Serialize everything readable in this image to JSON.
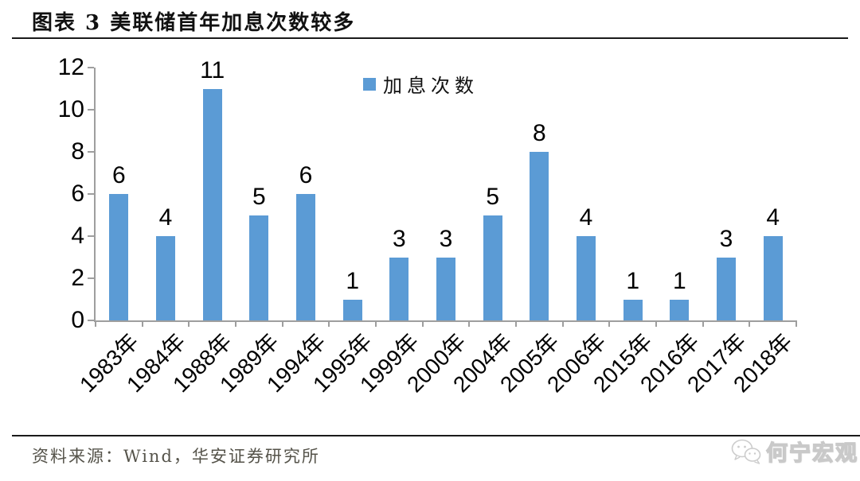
{
  "header": {
    "title": "图表 3 美联储首年加息次数较多"
  },
  "chart_data": {
    "type": "bar",
    "title": "图表 3 美联储首年加息次数较多",
    "legend": "加息次数",
    "legend_position": "top",
    "categories": [
      "1983年",
      "1984年",
      "1988年",
      "1989年",
      "1994年",
      "1995年",
      "1999年",
      "2000年",
      "2004年",
      "2005年",
      "2006年",
      "2015年",
      "2016年",
      "2017年",
      "2018年"
    ],
    "values": [
      6,
      4,
      11,
      5,
      6,
      1,
      3,
      3,
      5,
      8,
      4,
      1,
      1,
      3,
      4
    ],
    "xlabel": "",
    "ylabel": "",
    "ylim": [
      0,
      12
    ],
    "ytick_step": 2,
    "grid": false,
    "bar_color": "#5B9BD5",
    "axis_color": "#9e9e9e"
  },
  "footer": {
    "source": "资料来源：Wind，华安证券研究所",
    "watermark": "何宁宏观"
  }
}
